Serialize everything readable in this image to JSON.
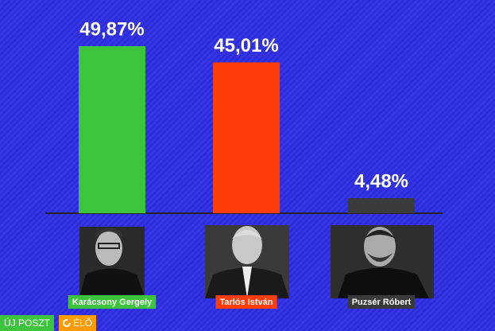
{
  "chart_data": {
    "type": "bar",
    "categories": [
      "Karácsony Gergely",
      "Tarlós István",
      "Puzsér Róbert"
    ],
    "values": [
      49.87,
      45.01,
      4.48
    ],
    "value_labels": [
      "49,87%",
      "45,01%",
      "4,48%"
    ],
    "colors": [
      "#3cc43c",
      "#ff3d0b",
      "#3a3a3a"
    ]
  },
  "ui": {
    "new_post": "ÚJ POSZT",
    "live": "ÉLŐ"
  }
}
